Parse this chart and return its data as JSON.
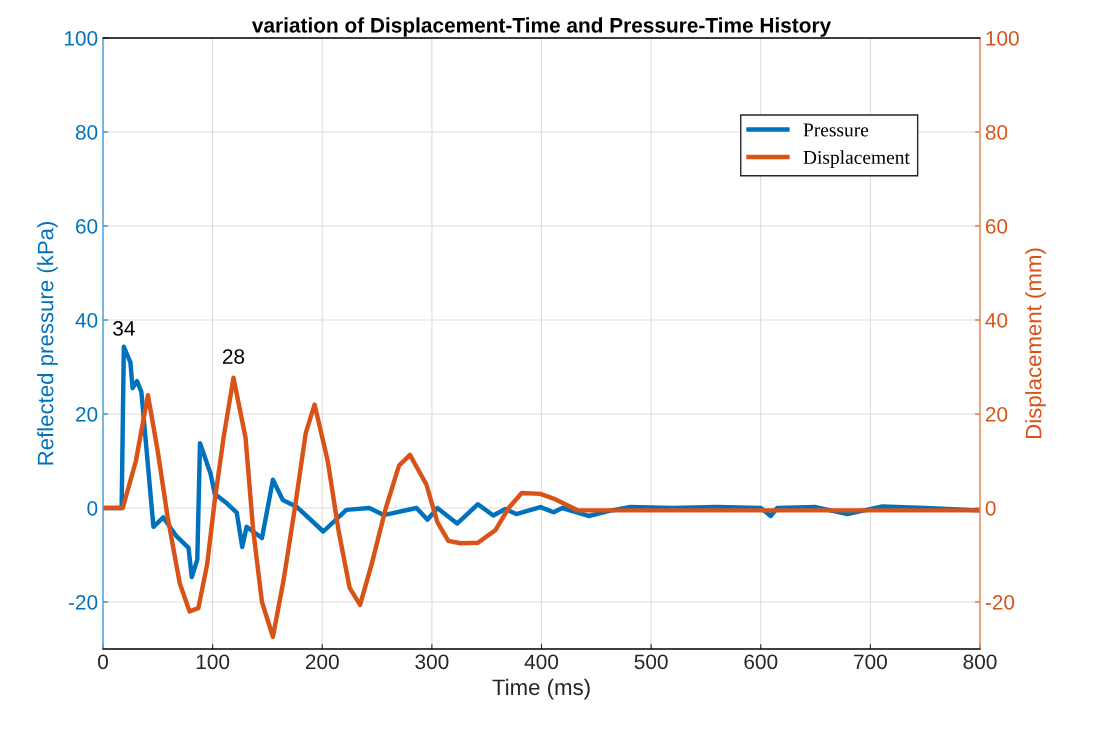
{
  "chart_data": {
    "type": "line",
    "title": "variation of Displacement-Time and Pressure-Time History",
    "xlabel": "Time (ms)",
    "ylabel": "Reflected pressure (kPa)",
    "y2label": "Displacement (mm)",
    "xlim": [
      0,
      800
    ],
    "xticks": [
      0,
      100,
      200,
      300,
      400,
      500,
      600,
      700,
      800
    ],
    "ylim": [
      -30,
      100
    ],
    "yticks": [
      -20,
      0,
      20,
      40,
      60,
      80,
      100
    ],
    "y2lim": [
      -30,
      100
    ],
    "y2ticks": [
      -20,
      0,
      20,
      40,
      60,
      80,
      100
    ],
    "grid": true,
    "legend": "top right",
    "marker": "none",
    "line_style": "solid",
    "annotations": [
      {
        "text": "34",
        "x": 19,
        "y": 34
      },
      {
        "text": "28",
        "x": 119,
        "y": 28
      }
    ],
    "series": [
      {
        "name": "Pressure",
        "color": "#0072bd",
        "x": [
          0,
          17,
          19,
          25,
          27,
          31,
          35,
          46,
          55,
          67,
          78,
          81,
          86,
          88.5,
          98,
          102,
          113,
          122,
          127,
          131,
          145,
          155,
          164,
          177,
          201,
          222,
          243,
          256,
          286,
          296,
          305,
          323,
          342,
          356,
          367,
          377,
          399,
          411,
          419,
          443,
          462,
          480,
          520,
          560,
          600,
          609,
          615,
          650,
          679,
          710,
          750,
          800
        ],
        "values": [
          0,
          0,
          34.3,
          31,
          25.5,
          27,
          24.7,
          -4,
          -2,
          -6,
          -8.5,
          -14.7,
          -11,
          13.8,
          7.4,
          3,
          1,
          -1,
          -8.3,
          -4,
          -6.4,
          6,
          1.7,
          0.2,
          -5,
          -0.4,
          0,
          -1.5,
          0,
          -2.5,
          0,
          -3.3,
          0.8,
          -1.6,
          -0.2,
          -1.3,
          0.2,
          -0.9,
          0,
          -1.7,
          -0.6,
          0.2,
          0,
          0.2,
          0,
          -1.7,
          0,
          0.2,
          -1.3,
          0.3,
          0,
          -0.5
        ]
      },
      {
        "name": "Displacement",
        "color": "#d95319",
        "axis": "y2",
        "x": [
          0,
          18,
          30,
          41,
          50,
          59,
          70,
          79,
          87,
          95,
          102,
          110,
          119,
          130,
          137,
          145,
          155,
          165,
          175,
          185,
          193,
          205,
          215,
          225,
          234.5,
          245,
          258,
          270,
          280,
          295,
          305,
          315,
          326,
          342,
          358,
          370,
          382,
          399,
          411,
          433,
          450,
          500,
          600,
          700,
          800
        ],
        "values": [
          0,
          0,
          10,
          24,
          12,
          -2,
          -16,
          -22,
          -21.3,
          -12,
          1.7,
          15,
          27.7,
          15,
          -4.7,
          -20,
          -27.4,
          -15,
          0,
          16,
          22,
          10,
          -5,
          -17,
          -20.6,
          -12,
          0,
          9,
          11.3,
          5,
          -3,
          -7,
          -7.5,
          -7.4,
          -4.7,
          0,
          3.2,
          3,
          2,
          -0.5,
          -0.5,
          -0.5,
          -0.5,
          -0.5,
          -0.5
        ]
      }
    ]
  }
}
